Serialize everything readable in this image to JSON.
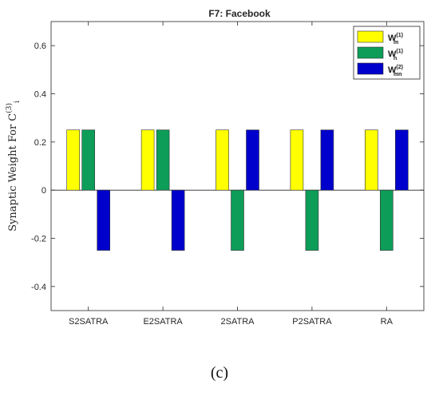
{
  "chart_data": {
    "type": "bar",
    "title": "F7: Facebook",
    "ylabel": "Synaptic Weight For C",
    "ylabel_sub": "i",
    "ylabel_sup": "(3)",
    "categories": [
      "S2SATRA",
      "E2SATRA",
      "2SATRA",
      "P2SATRA",
      "RA"
    ],
    "ylim": [
      -0.5,
      0.7
    ],
    "yticks": [
      -0.4,
      -0.2,
      0,
      0.2,
      0.4,
      0.6
    ],
    "ytick_labels": [
      "-0.4",
      "-0.2",
      "0",
      "0.2",
      "0.4",
      "0.6"
    ],
    "series": [
      {
        "name": "W",
        "sub": "m",
        "sup": "(1)",
        "color": "#ffff00",
        "values": [
          0.25,
          0.25,
          0.25,
          0.25,
          0.25
        ]
      },
      {
        "name": "W",
        "sub": "n",
        "sup": "(1)",
        "color": "#0d9d58",
        "values": [
          0.25,
          0.25,
          -0.25,
          -0.25,
          -0.25
        ]
      },
      {
        "name": "W",
        "sub": "mn",
        "sup": "(2)",
        "color": "#0000cc",
        "values": [
          -0.25,
          -0.25,
          0.25,
          0.25,
          0.25
        ]
      }
    ],
    "legend_position": "top-right",
    "grid": false
  },
  "caption": "(c)"
}
